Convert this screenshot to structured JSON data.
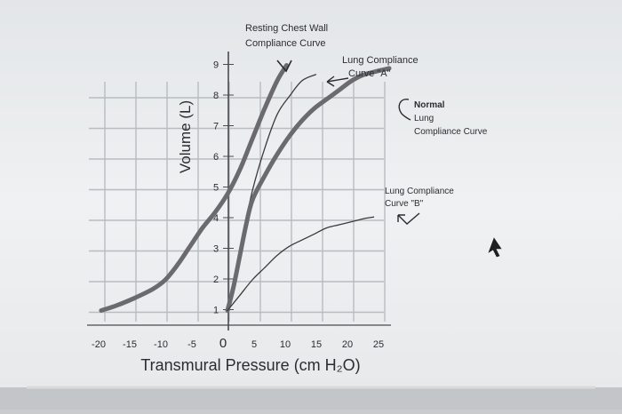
{
  "chart_data": {
    "type": "line",
    "xlabel": "Transmural Pressure (cm H₂O)",
    "ylabel": "Volume (L)",
    "xlim": [
      -20,
      25
    ],
    "ylim": [
      0,
      9.5
    ],
    "x_ticks": [
      "-20",
      "-15",
      "-10",
      "-5",
      "0",
      "5",
      "10",
      "15",
      "20",
      "25"
    ],
    "y_ticks": [
      "1",
      "2",
      "3",
      "4",
      "5",
      "6",
      "7",
      "8",
      "9"
    ],
    "grid": true,
    "series": [
      {
        "name": "Resting Chest Wall Compliance Curve",
        "style": "thick",
        "points": [
          [
            -20.3,
            1.0
          ],
          [
            -18,
            1.15
          ],
          [
            -15,
            1.4
          ],
          [
            -12,
            1.7
          ],
          [
            -10,
            2.0
          ],
          [
            -8,
            2.5
          ],
          [
            -6,
            3.1
          ],
          [
            -4,
            3.7
          ],
          [
            -2,
            4.2
          ],
          [
            0,
            4.8
          ],
          [
            2,
            5.6
          ],
          [
            4,
            6.6
          ],
          [
            6,
            7.6
          ],
          [
            8,
            8.5
          ],
          [
            9.5,
            9.0
          ]
        ]
      },
      {
        "name": "Lung Compliance Curve \"A\"",
        "style": "thin",
        "points": [
          [
            0,
            1.0
          ],
          [
            2,
            3.0
          ],
          [
            4,
            4.9
          ],
          [
            6,
            6.3
          ],
          [
            8,
            7.4
          ],
          [
            10,
            8.0
          ],
          [
            12,
            8.5
          ],
          [
            14.2,
            8.7
          ]
        ]
      },
      {
        "name": "Normal Lung Compliance Curve",
        "style": "thick",
        "points": [
          [
            0,
            1.0
          ],
          [
            1,
            1.8
          ],
          [
            2,
            2.8
          ],
          [
            3,
            3.8
          ],
          [
            4,
            4.6
          ],
          [
            6,
            5.4
          ],
          [
            8,
            6.1
          ],
          [
            10,
            6.7
          ],
          [
            12,
            7.2
          ],
          [
            14,
            7.6
          ],
          [
            16,
            7.9
          ],
          [
            18,
            8.2
          ],
          [
            20,
            8.5
          ],
          [
            22,
            8.7
          ],
          [
            26,
            8.9
          ]
        ]
      },
      {
        "name": "Lung Compliance Curve \"B\"",
        "style": "thin",
        "points": [
          [
            0,
            1.0
          ],
          [
            2,
            1.5
          ],
          [
            4,
            2.0
          ],
          [
            6,
            2.4
          ],
          [
            8,
            2.8
          ],
          [
            10,
            3.1
          ],
          [
            12,
            3.3
          ],
          [
            14,
            3.5
          ],
          [
            16,
            3.7
          ],
          [
            18,
            3.8
          ],
          [
            20,
            3.9
          ],
          [
            22,
            4.0
          ],
          [
            23.5,
            4.05
          ]
        ]
      }
    ],
    "annotations": {
      "chest_wall": [
        "Resting Chest Wall",
        "Compliance Curve"
      ],
      "curve_a": [
        "Lung Compliance",
        "Curve \"A\""
      ],
      "normal": [
        "Normal",
        "Lung",
        "Compliance Curve"
      ],
      "curve_b": [
        "Lung Compliance",
        "Curve \"B\""
      ]
    }
  },
  "colors": {
    "paper": "#eef0f1",
    "grid": "#b8bcc0",
    "thick_line": "#6b6b6f",
    "thin_line": "#3a3a3c",
    "text": "#2b2c30"
  }
}
